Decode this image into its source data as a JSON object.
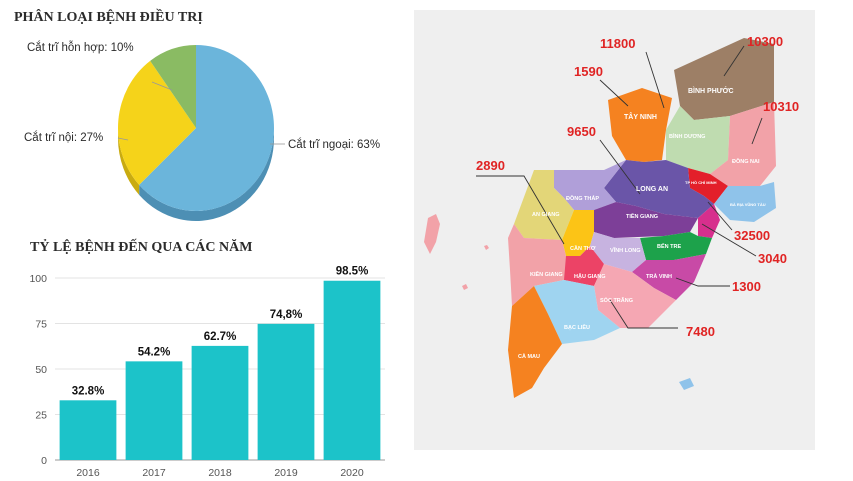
{
  "pie": {
    "title": "PHÂN LOẠI BỆNH ĐIỀU TRỊ",
    "labels": {
      "hon_hop": "Cắt trĩ hỗn hợp: 10%",
      "noi": "Cắt trĩ nội: 27%",
      "ngoai": "Cắt trĩ ngoại: 63%"
    }
  },
  "bar": {
    "title": "TỶ LỆ BỆNH ĐẾN QUA CÁC NĂM"
  },
  "map": {
    "numbers": [
      "11800",
      "10300",
      "1590",
      "10310",
      "9650",
      "2890",
      "32500",
      "3040",
      "1300",
      "7480"
    ],
    "provinces": [
      "BÌNH PHƯỚC",
      "TÂY NINH",
      "BÌNH DƯƠNG",
      "ĐỒNG NAI",
      "LONG AN",
      "TP HỒ CHÍ MINH",
      "BÀ RỊA VŨNG TÀU",
      "ĐỒNG THÁP",
      "AN GIANG",
      "TIỀN GIANG",
      "BẾN TRE",
      "CẦN THƠ",
      "VĨNH LONG",
      "KIÊN GIANG",
      "HẬU GIANG",
      "TRÀ VINH",
      "SÓC TRĂNG",
      "BẠC LIÊU",
      "CÀ MAU"
    ]
  },
  "colors": {
    "pie_ngoai": "#6bb5db",
    "pie_noi": "#f5d31a",
    "pie_hon_hop": "#8abb63",
    "bar": "#1cc3c9",
    "number": "#e02424"
  },
  "chart_data": [
    {
      "type": "pie",
      "title": "PHÂN LOẠI BỆNH ĐIỀU TRỊ",
      "categories": [
        "Cắt trĩ ngoại",
        "Cắt trĩ nội",
        "Cắt trĩ hỗn hợp"
      ],
      "values": [
        63,
        27,
        10
      ],
      "unit": "%"
    },
    {
      "type": "bar",
      "title": "TỶ LỆ BỆNH ĐẾN QUA CÁC NĂM",
      "categories": [
        "2016",
        "2017",
        "2018",
        "2019",
        "2020"
      ],
      "values": [
        32.8,
        54.2,
        62.7,
        74.8,
        98.5
      ],
      "data_labels": [
        "32.8%",
        "54.2%",
        "62.7%",
        "74,8%",
        "98.5%"
      ],
      "ylim": [
        0,
        100
      ],
      "yticks": [
        0,
        25,
        50,
        75,
        100
      ],
      "grid": true
    }
  ]
}
